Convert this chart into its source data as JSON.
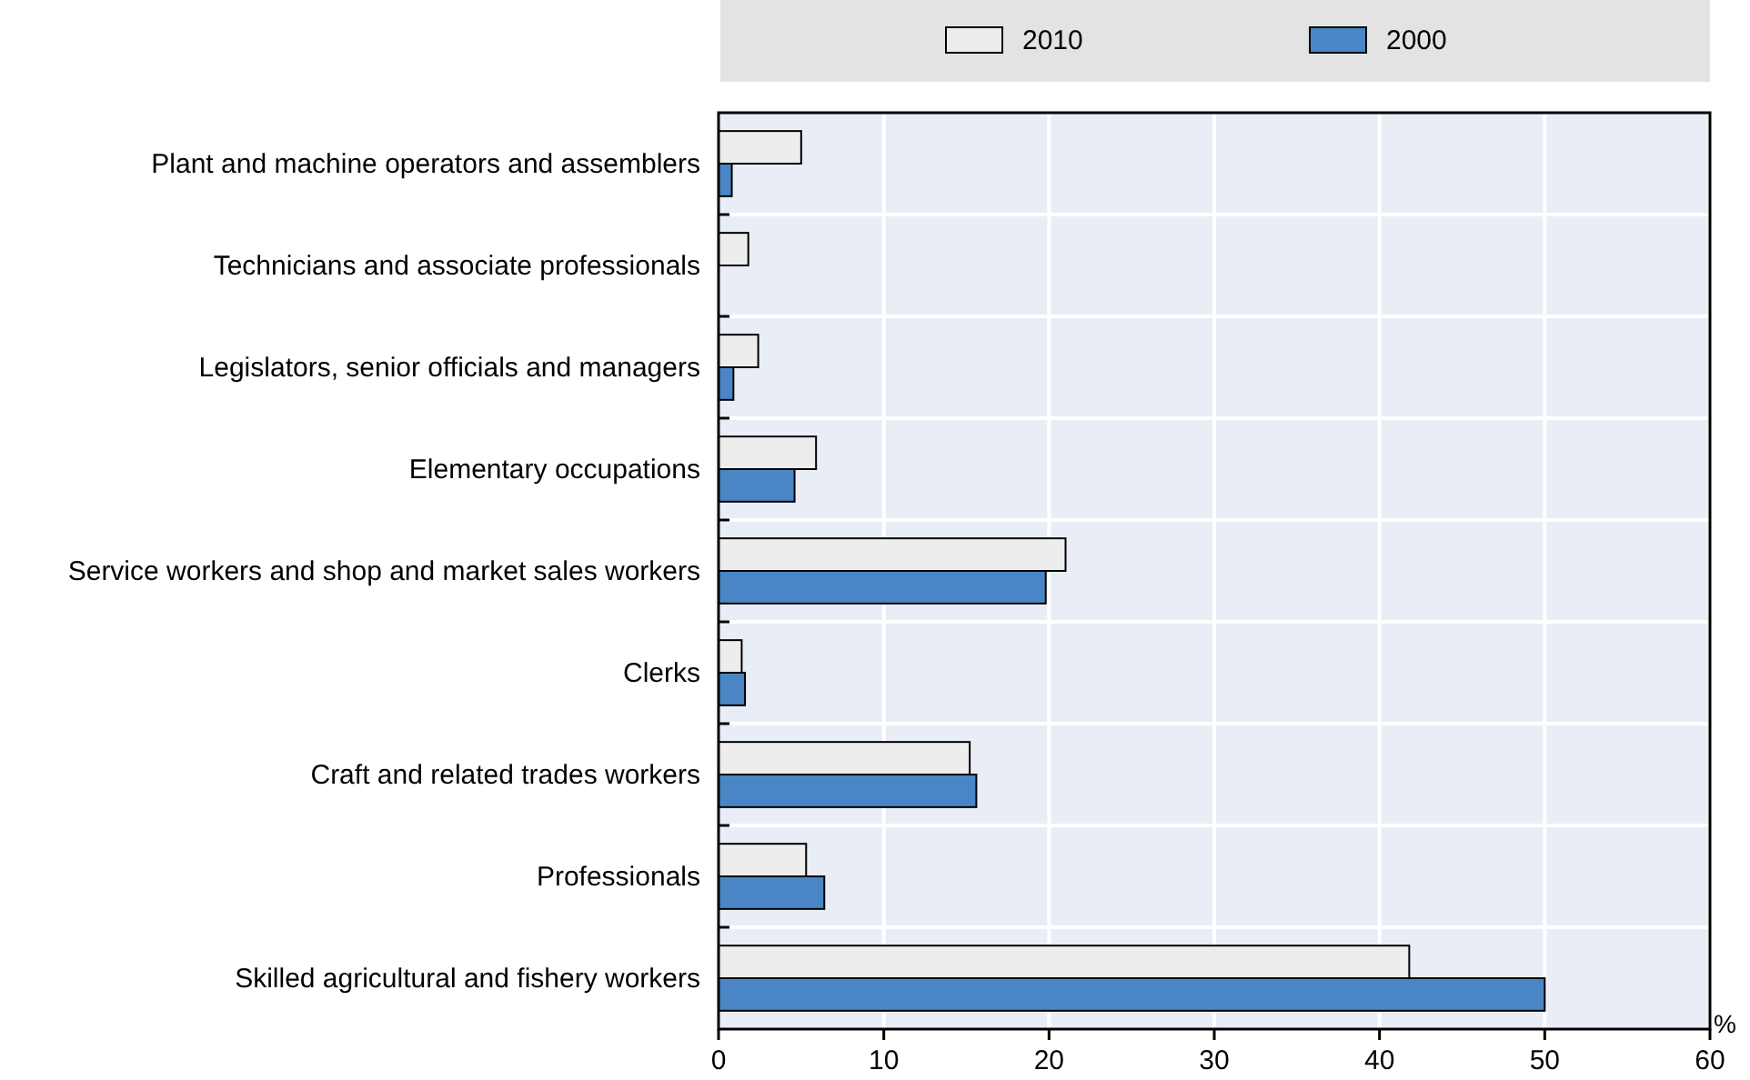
{
  "chart_data": {
    "type": "bar",
    "orientation": "horizontal",
    "xlabel": "%",
    "categories": [
      "Plant and machine operators and assemblers",
      "Technicians and associate professionals",
      "Legislators, senior officials and managers",
      "Elementary occupations",
      "Service workers and shop and market sales workers",
      "Clerks",
      "Craft and related trades workers",
      "Professionals",
      "Skilled agricultural and fishery workers"
    ],
    "series": [
      {
        "name": "2010",
        "color": "#ededed",
        "values": [
          5.0,
          1.8,
          2.4,
          5.9,
          21.0,
          1.4,
          15.2,
          5.3,
          41.8
        ]
      },
      {
        "name": "2000",
        "color": "#4a86c5",
        "values": [
          0.8,
          0,
          0.9,
          4.6,
          19.8,
          1.6,
          15.6,
          6.4,
          50.0
        ]
      }
    ],
    "xlim": [
      0,
      60
    ],
    "xticks": [
      0,
      10,
      20,
      30,
      40,
      50,
      60
    ],
    "grid": true,
    "legend": "top"
  }
}
